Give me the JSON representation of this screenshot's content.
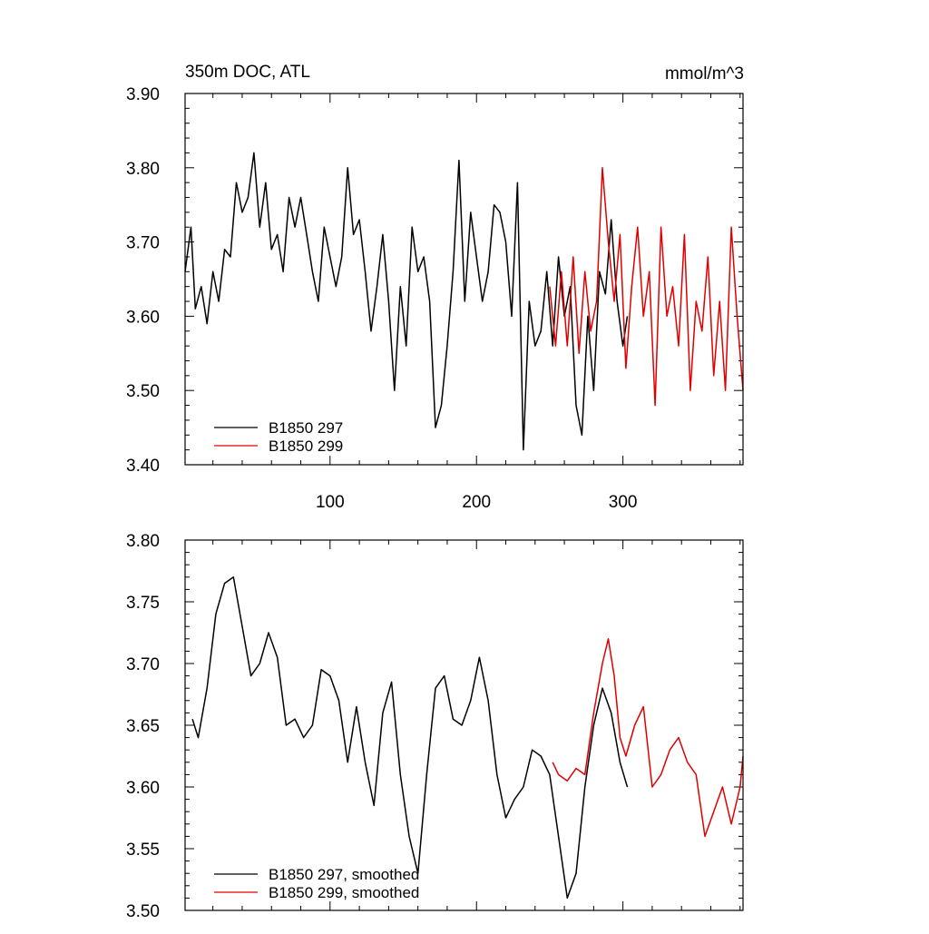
{
  "chart_data": [
    {
      "type": "line",
      "title": "350m DOC, ATL",
      "units": "mmol/m^3",
      "xlim": [
        1,
        382
      ],
      "ylim": [
        3.4,
        3.9
      ],
      "xticks": [
        100,
        200,
        300
      ],
      "yticks": [
        3.4,
        3.5,
        3.6,
        3.7,
        3.8,
        3.9
      ],
      "ytick_labels": [
        "3.40",
        "3.50",
        "3.60",
        "3.70",
        "3.80",
        "3.90"
      ],
      "legend_position": "bottom-left",
      "series": [
        {
          "name": "B1850 297",
          "color": "#000000",
          "x": [
            1,
            5,
            8,
            12,
            16,
            20,
            24,
            28,
            32,
            36,
            40,
            44,
            48,
            52,
            56,
            60,
            64,
            68,
            72,
            76,
            80,
            84,
            88,
            92,
            96,
            100,
            104,
            108,
            112,
            116,
            120,
            124,
            128,
            132,
            136,
            140,
            144,
            148,
            152,
            156,
            160,
            164,
            168,
            172,
            176,
            180,
            184,
            188,
            192,
            196,
            200,
            204,
            208,
            212,
            216,
            220,
            224,
            228,
            232,
            236,
            240,
            244,
            248,
            252,
            256,
            260,
            264,
            268,
            272,
            276,
            280,
            284,
            288,
            292,
            296,
            300,
            303
          ],
          "y": [
            3.66,
            3.72,
            3.61,
            3.64,
            3.59,
            3.66,
            3.62,
            3.69,
            3.68,
            3.78,
            3.74,
            3.76,
            3.82,
            3.72,
            3.78,
            3.69,
            3.71,
            3.66,
            3.76,
            3.72,
            3.76,
            3.71,
            3.66,
            3.62,
            3.72,
            3.68,
            3.64,
            3.68,
            3.8,
            3.71,
            3.73,
            3.66,
            3.58,
            3.64,
            3.71,
            3.62,
            3.5,
            3.64,
            3.56,
            3.72,
            3.66,
            3.68,
            3.62,
            3.45,
            3.48,
            3.56,
            3.66,
            3.81,
            3.62,
            3.74,
            3.68,
            3.62,
            3.66,
            3.75,
            3.74,
            3.7,
            3.6,
            3.78,
            3.42,
            3.62,
            3.56,
            3.58,
            3.66,
            3.56,
            3.68,
            3.6,
            3.64,
            3.48,
            3.44,
            3.6,
            3.5,
            3.66,
            3.63,
            3.73,
            3.62,
            3.56,
            3.6
          ]
        },
        {
          "name": "B1850 299",
          "color": "#e00000",
          "x": [
            250,
            254,
            258,
            262,
            266,
            270,
            274,
            278,
            282,
            286,
            290,
            294,
            298,
            302,
            306,
            310,
            314,
            318,
            322,
            326,
            330,
            334,
            338,
            342,
            346,
            350,
            354,
            358,
            362,
            366,
            370,
            374,
            378,
            382
          ],
          "y": [
            3.64,
            3.56,
            3.66,
            3.56,
            3.68,
            3.55,
            3.66,
            3.58,
            3.62,
            3.8,
            3.7,
            3.62,
            3.71,
            3.53,
            3.64,
            3.72,
            3.6,
            3.66,
            3.48,
            3.72,
            3.6,
            3.64,
            3.56,
            3.71,
            3.5,
            3.62,
            3.58,
            3.68,
            3.52,
            3.62,
            3.5,
            3.72,
            3.6,
            3.5
          ]
        }
      ]
    },
    {
      "type": "line",
      "xlim": [
        1,
        382
      ],
      "ylim": [
        3.5,
        3.8
      ],
      "yticks": [
        3.5,
        3.55,
        3.6,
        3.65,
        3.7,
        3.75,
        3.8
      ],
      "ytick_labels": [
        "3.50",
        "3.55",
        "3.60",
        "3.65",
        "3.70",
        "3.75",
        "3.80"
      ],
      "legend_position": "bottom-left",
      "series": [
        {
          "name": "B1850 297, smoothed",
          "color": "#000000",
          "x": [
            6,
            10,
            16,
            22,
            28,
            34,
            40,
            46,
            52,
            58,
            64,
            70,
            76,
            82,
            88,
            94,
            100,
            106,
            112,
            118,
            124,
            130,
            136,
            142,
            148,
            154,
            160,
            166,
            172,
            178,
            184,
            190,
            196,
            202,
            208,
            214,
            220,
            226,
            232,
            238,
            244,
            250,
            256,
            262,
            268,
            274,
            280,
            286,
            292,
            298,
            303
          ],
          "y": [
            3.655,
            3.64,
            3.68,
            3.74,
            3.765,
            3.77,
            3.73,
            3.69,
            3.7,
            3.725,
            3.705,
            3.65,
            3.655,
            3.64,
            3.65,
            3.695,
            3.69,
            3.67,
            3.62,
            3.665,
            3.62,
            3.585,
            3.66,
            3.685,
            3.61,
            3.56,
            3.53,
            3.61,
            3.68,
            3.69,
            3.655,
            3.65,
            3.67,
            3.705,
            3.67,
            3.61,
            3.575,
            3.59,
            3.6,
            3.63,
            3.625,
            3.61,
            3.56,
            3.51,
            3.53,
            3.6,
            3.65,
            3.68,
            3.66,
            3.62,
            3.6
          ]
        },
        {
          "name": "B1850 299, smoothed",
          "color": "#e00000",
          "x": [
            252,
            256,
            262,
            268,
            274,
            280,
            286,
            290,
            294,
            298,
            302,
            308,
            314,
            320,
            326,
            332,
            338,
            344,
            350,
            356,
            362,
            368,
            374,
            380,
            382
          ],
          "y": [
            3.62,
            3.61,
            3.605,
            3.615,
            3.61,
            3.66,
            3.7,
            3.72,
            3.69,
            3.64,
            3.625,
            3.65,
            3.665,
            3.6,
            3.61,
            3.63,
            3.64,
            3.62,
            3.61,
            3.56,
            3.58,
            3.6,
            3.57,
            3.6,
            3.625
          ]
        }
      ]
    }
  ]
}
